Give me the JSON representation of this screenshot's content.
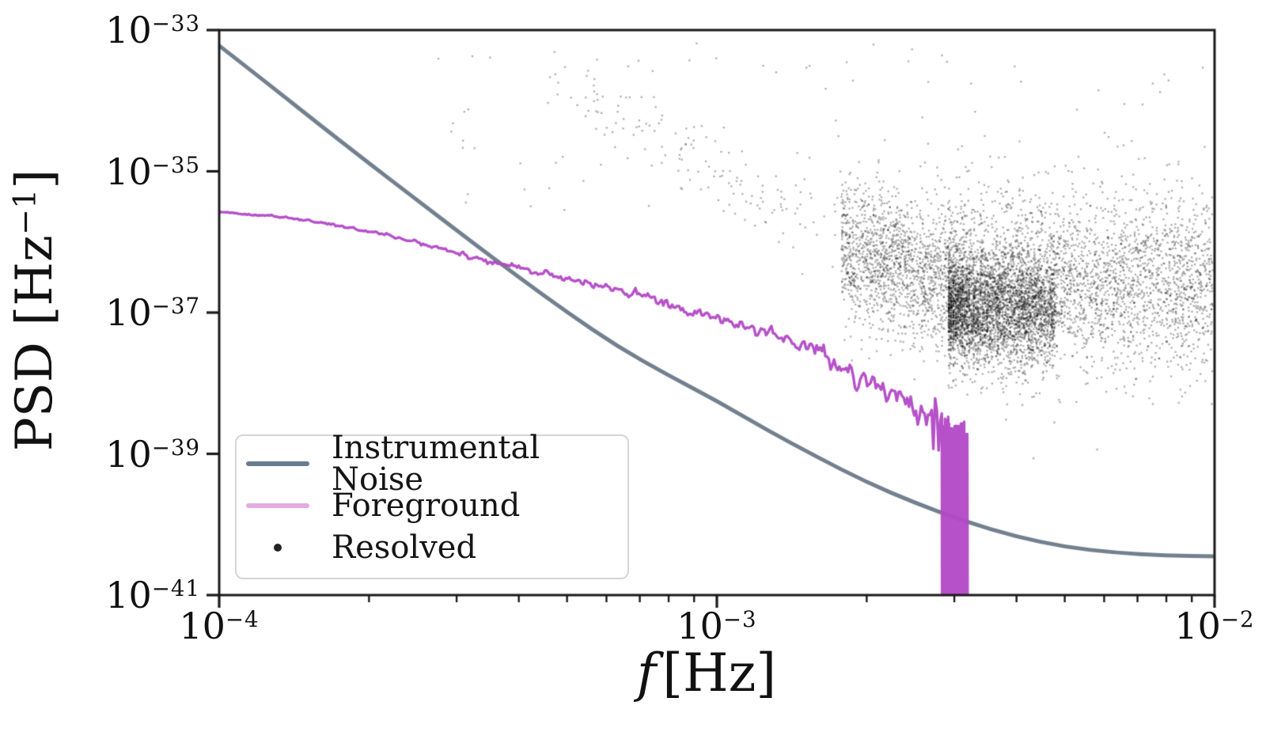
{
  "figure": {
    "background": "#ffffff"
  },
  "chart_data": {
    "type": "line+scatter",
    "title": "",
    "xlabel": {
      "italic": "f",
      "rest": "[Hz]"
    },
    "ylabel": {
      "pre": "PSD [Hz",
      "sup": "−1",
      "post": "]"
    },
    "x_axis": {
      "scale": "log",
      "base_label": "10",
      "min_exp": -4,
      "max_exp": -2,
      "ticks": [
        {
          "exp": -4,
          "label": "−4"
        },
        {
          "exp": -3,
          "label": "−3"
        },
        {
          "exp": -2,
          "label": "−2"
        }
      ],
      "minor_ticks_per_decade": true
    },
    "y_axis": {
      "scale": "log",
      "base_label": "10",
      "min_exp": -41,
      "max_exp": -33,
      "ticks": [
        {
          "exp": -33,
          "label": "−33"
        },
        {
          "exp": -35,
          "label": "−35"
        },
        {
          "exp": -37,
          "label": "−37"
        },
        {
          "exp": -39,
          "label": "−39"
        },
        {
          "exp": -41,
          "label": "−41"
        }
      ]
    },
    "grid": false,
    "legend": {
      "position": "lower left",
      "entries": [
        {
          "label": "Instrumental Noise",
          "swatch": "line",
          "color": "#6b7c8e"
        },
        {
          "label": "Foreground",
          "swatch": "line",
          "color": "#e3abdf"
        },
        {
          "label": "Resolved",
          "swatch": "dot",
          "color": "#222222"
        }
      ]
    },
    "series": [
      {
        "name": "Instrumental Noise",
        "type": "line",
        "color": "#72808F",
        "width": 5,
        "loglog_points": [
          [
            -4.0,
            -33.22
          ],
          [
            -3.9,
            -33.77
          ],
          [
            -3.8,
            -34.33
          ],
          [
            -3.7,
            -34.88
          ],
          [
            -3.6,
            -35.42
          ],
          [
            -3.5,
            -35.96
          ],
          [
            -3.4,
            -36.49
          ],
          [
            -3.3,
            -37.0
          ],
          [
            -3.2,
            -37.48
          ],
          [
            -3.1,
            -37.88
          ],
          [
            -3.0,
            -38.25
          ],
          [
            -2.9,
            -38.66
          ],
          [
            -2.8,
            -39.04
          ],
          [
            -2.7,
            -39.4
          ],
          [
            -2.6,
            -39.7
          ],
          [
            -2.5,
            -39.96
          ],
          [
            -2.4,
            -40.17
          ],
          [
            -2.3,
            -40.32
          ],
          [
            -2.2,
            -40.4
          ],
          [
            -2.1,
            -40.44
          ],
          [
            -2.0,
            -40.45
          ]
        ]
      },
      {
        "name": "Foreground",
        "type": "line",
        "color": "rgba(178,72,198,0.95)",
        "width": 3.4,
        "trend_loglog": [
          [
            -4.0,
            -35.57
          ],
          [
            -3.9,
            -35.63
          ],
          [
            -3.8,
            -35.72
          ],
          [
            -3.7,
            -35.85
          ],
          [
            -3.6,
            -36.0
          ],
          [
            -3.5,
            -36.2
          ],
          [
            -3.4,
            -36.37
          ],
          [
            -3.3,
            -36.53
          ],
          [
            -3.2,
            -36.68
          ],
          [
            -3.1,
            -36.86
          ],
          [
            -3.0,
            -37.05
          ],
          [
            -2.9,
            -37.28
          ],
          [
            -2.8,
            -37.56
          ],
          [
            -2.7,
            -37.93
          ],
          [
            -2.62,
            -38.28
          ],
          [
            -2.57,
            -38.48
          ],
          [
            -2.5,
            -38.72
          ]
        ],
        "jitter": {
          "base": 0.006,
          "growth": 2.0
        },
        "spike_zone": {
          "start": -2.548,
          "end": -2.497,
          "pre_spikes": [
            -2.565,
            -2.554
          ],
          "depth": -41.8
        }
      },
      {
        "name": "Resolved",
        "type": "scatter",
        "color": "rgba(0,0,0,0.30)",
        "marker_px": 2.4,
        "clusters": [
          {
            "name": "upper-band",
            "n": 150,
            "logf": [
              -3.34,
              -2.72
            ],
            "center_start": -33.55,
            "center_end": -36.15,
            "sigma": 0.28
          },
          {
            "name": "sprinkle",
            "n": 95,
            "logf": [
              -3.56,
              -2.02
            ],
            "logS": [
              -33.1,
              -35.6
            ]
          },
          {
            "name": "transition",
            "n": 1450,
            "logf": [
              -2.75,
              -2.535
            ],
            "center_start": -36.15,
            "center_end": -36.5,
            "sigma": 0.5
          },
          {
            "name": "dense-core",
            "n": 3100,
            "logf_start": -2.535,
            "logf_span": 0.215,
            "pow": 1.3,
            "center": -36.95,
            "sigma": 0.38,
            "stripe_quant": 0.0045
          },
          {
            "name": "halo",
            "n": 3200,
            "logf_start": -2.535,
            "logf_span": 0.535,
            "pow": 1.15,
            "center": -36.6,
            "sigma": 0.62
          }
        ]
      }
    ]
  }
}
